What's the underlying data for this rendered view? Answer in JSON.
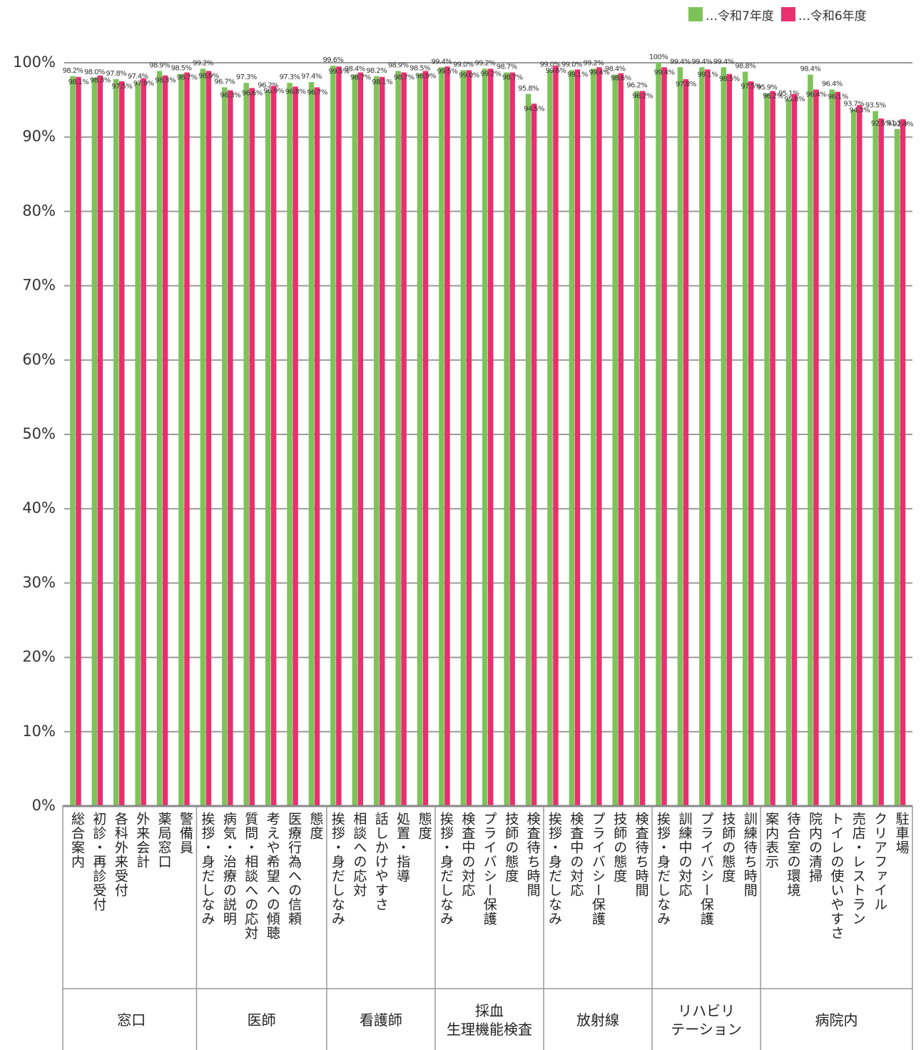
{
  "chart_data": {
    "type": "bar",
    "groups": [
      {
        "name": "窓口",
        "categories": [
          "総合案内",
          "初診・再診受付",
          "各科外来受付",
          "外来会計",
          "薬局窓口",
          "警備員"
        ]
      },
      {
        "name": "医師",
        "categories": [
          "挨拶・身だしなみ",
          "病気・治療の説明",
          "質問・相談への応対",
          "考えや希望への傾聴",
          "医療行為への信頼",
          "態度"
        ]
      },
      {
        "name": "看護師",
        "categories": [
          "挨拶・身だしなみ",
          "相談への応対",
          "話しかけやすさ",
          "処置・指導",
          "態度"
        ]
      },
      {
        "name": "採血\n生理機能検査",
        "categories": [
          "挨拶・身だしなみ",
          "検査中の対応",
          "プライバシー保護",
          "技師の態度",
          "検査待ち時間"
        ]
      },
      {
        "name": "放射線",
        "categories": [
          "挨拶・身だしなみ",
          "検査中の対応",
          "プライバシー保護",
          "技師の態度",
          "検査待ち時間"
        ]
      },
      {
        "name": "リハビリ\nテーション",
        "categories": [
          "挨拶・身だしなみ",
          "訓練中の対応",
          "プライバシー保護",
          "技師の態度",
          "訓練待ち時間"
        ]
      },
      {
        "name": "病院内",
        "categories": [
          "案内表示",
          "待合室の環境",
          "院内の清掃",
          "トイレの使いやすさ",
          "売店・レストラン",
          "クリアファイル",
          "駐車場"
        ]
      }
    ],
    "series": [
      {
        "name": "…令和7年度",
        "color": "#7dc35a",
        "values": [
          98.2,
          98.0,
          97.8,
          97.4,
          98.9,
          98.5,
          99.2,
          96.7,
          97.3,
          96.2,
          97.3,
          97.4,
          99.6,
          98.4,
          98.2,
          98.9,
          98.5,
          99.4,
          99.0,
          99.2,
          98.7,
          95.8,
          99.0,
          99.0,
          99.2,
          98.4,
          96.2,
          100,
          99.4,
          99.4,
          99.4,
          98.8,
          95.9,
          95.1,
          98.4,
          96.4,
          93.7,
          93.5,
          91.1
        ],
        "value_labels": [
          "98.2%",
          "98.0%",
          "97.8%",
          "97.4%",
          "98.9%",
          "98.5%",
          "99.2%",
          "96.7%",
          "97.3%",
          "96.2%",
          "97.3%",
          "97.4%",
          "99.6%",
          "98.4%",
          "98.2%",
          "98.9%",
          "98.5%",
          "99.4%",
          "99.0%",
          "99.2%",
          "98.7%",
          "95.8%",
          "99.0%",
          "99.0%",
          "99.2%",
          "98.4%",
          "96.2%",
          "100%",
          "99.4%",
          "99.4%",
          "99.4%",
          "98.8%",
          "95.9%",
          "95.1%",
          "98.4%",
          "96.4%",
          "93.7%",
          "93.5%",
          "91.1%"
        ]
      },
      {
        "name": "…令和6年度",
        "color": "#e8306f",
        "values": [
          98.1,
          98.3,
          97.5,
          97.9,
          98.3,
          98.7,
          98.9,
          96.3,
          96.6,
          96.9,
          96.8,
          96.7,
          99.5,
          98.7,
          98.1,
          98.7,
          98.9,
          99.5,
          99.0,
          99.2,
          98.7,
          94.5,
          99.6,
          99.1,
          99.4,
          98.6,
          96.2,
          99.4,
          97.8,
          99.1,
          98.5,
          97.5,
          96.2,
          95.8,
          96.4,
          96.1,
          94.3,
          92.5,
          92.4
        ],
        "value_labels": [
          "98.1%",
          "98.3%",
          "97.5%",
          "97.9%",
          "98.3%",
          "98.7%",
          "98.9%",
          "96.3%",
          "96.6%",
          "96.9%",
          "96.8%",
          "96.7%",
          "99.5%",
          "98.7%",
          "98.1%",
          "98.7%",
          "98.9%",
          "99.5%",
          "99.0%",
          "99.2%",
          "98.7%",
          "94.5%",
          "99.6%",
          "99.1%",
          "99.4%",
          "98.6%",
          "96.2%",
          "99.4%",
          "97.8%",
          "99.1%",
          "98.5%",
          "97.5%",
          "96.2%",
          "95.8%",
          "96.4%",
          "96.1%",
          "94.3%",
          "92.5%",
          "92.4%"
        ]
      }
    ],
    "ylim": [
      0,
      100
    ],
    "yticks": [
      {
        "value": 0,
        "label": "0%"
      },
      {
        "value": 10,
        "label": "10%"
      },
      {
        "value": 20,
        "label": "20%"
      },
      {
        "value": 30,
        "label": "30%"
      },
      {
        "value": 40,
        "label": "40%"
      },
      {
        "value": 50,
        "label": "50%"
      },
      {
        "value": 60,
        "label": "60%"
      },
      {
        "value": 70,
        "label": "70%"
      },
      {
        "value": 80,
        "label": "80%"
      },
      {
        "value": 90,
        "label": "90%"
      },
      {
        "value": 100,
        "label": "100%"
      }
    ],
    "grid": true,
    "legend": "top-right"
  }
}
